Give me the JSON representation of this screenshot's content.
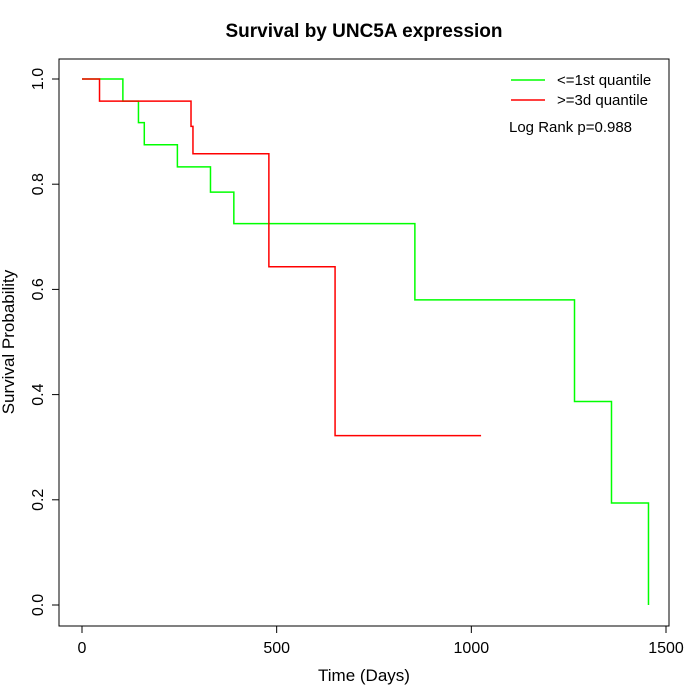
{
  "chart_data": {
    "type": "line",
    "title": "Survival by UNC5A expression",
    "xlabel": "Time (Days)",
    "ylabel": "Survival Probability",
    "xlim": [
      0,
      1500
    ],
    "ylim": [
      0,
      1
    ],
    "x_ticks": [
      "0",
      "500",
      "1000",
      "1500"
    ],
    "y_ticks": [
      "0.0",
      "0.2",
      "0.4",
      "0.6",
      "0.8",
      "1.0"
    ],
    "grid": false,
    "legend_position": "top-right",
    "annotation": "Log Rank p=0.988",
    "series": [
      {
        "name": "<=1st quantile",
        "color": "#00ff00",
        "x": [
          0,
          105,
          145,
          160,
          245,
          330,
          390,
          855,
          1265,
          1360,
          1455,
          1455
        ],
        "y": [
          1.0,
          0.958,
          0.917,
          0.875,
          0.833,
          0.785,
          0.725,
          0.58,
          0.387,
          0.194,
          0.194,
          0.0
        ]
      },
      {
        "name": ">=3d quantile",
        "color": "#ff0000",
        "x": [
          0,
          45,
          280,
          285,
          480,
          650,
          1025
        ],
        "y": [
          1.0,
          0.958,
          0.91,
          0.858,
          0.643,
          0.322,
          0.322
        ]
      }
    ]
  }
}
